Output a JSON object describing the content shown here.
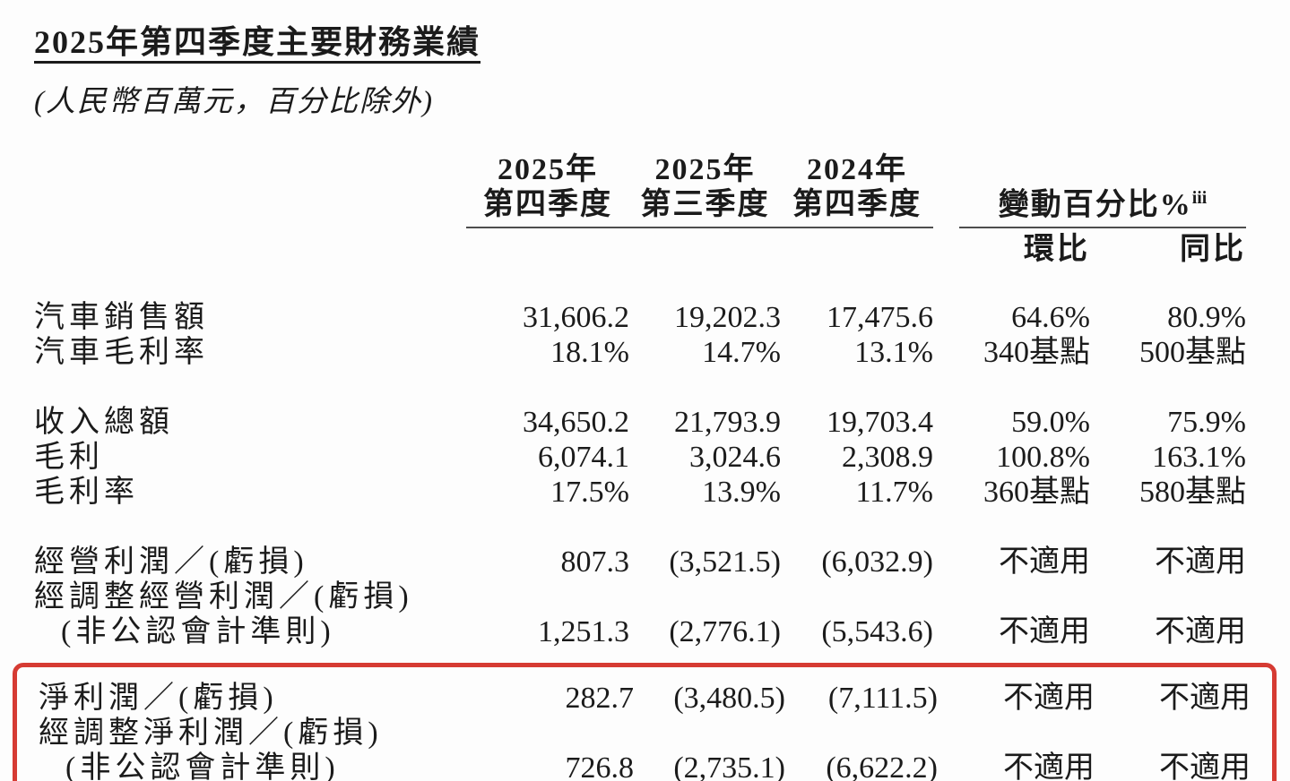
{
  "page": {
    "title": "2025年第四季度主要財務業績",
    "subtitle": "(人民幣百萬元，百分比除外)"
  },
  "table": {
    "period_headers": [
      {
        "year": "2025年",
        "quarter": "第四季度"
      },
      {
        "year": "2025年",
        "quarter": "第三季度"
      },
      {
        "year": "2024年",
        "quarter": "第四季度"
      }
    ],
    "change_group": {
      "label": "變動百分比%",
      "superscript": "iii",
      "qoq": "環比",
      "yoy": "同比"
    },
    "groups": [
      {
        "highlight": false,
        "rows": [
          {
            "label_lines": [
              "汽車銷售額"
            ],
            "values": [
              "31,606.2",
              "19,202.3",
              "17,475.6",
              "64.6%",
              "80.9%"
            ]
          },
          {
            "label_lines": [
              "汽車毛利率"
            ],
            "values": [
              "18.1%",
              "14.7%",
              "13.1%",
              "340基點",
              "500基點"
            ]
          }
        ]
      },
      {
        "highlight": false,
        "rows": [
          {
            "label_lines": [
              "收入總額"
            ],
            "values": [
              "34,650.2",
              "21,793.9",
              "19,703.4",
              "59.0%",
              "75.9%"
            ]
          },
          {
            "label_lines": [
              "毛利"
            ],
            "values": [
              "6,074.1",
              "3,024.6",
              "2,308.9",
              "100.8%",
              "163.1%"
            ]
          },
          {
            "label_lines": [
              "毛利率"
            ],
            "values": [
              "17.5%",
              "13.9%",
              "11.7%",
              "360基點",
              "580基點"
            ]
          }
        ]
      },
      {
        "highlight": false,
        "rows": [
          {
            "label_lines": [
              "經營利潤／(虧損)"
            ],
            "values": [
              "807.3",
              "(3,521.5)",
              "(6,032.9)",
              "不適用",
              "不適用"
            ]
          },
          {
            "label_lines": [
              "經調整經營利潤／(虧損)",
              "(非公認會計準則)"
            ],
            "values": [
              "1,251.3",
              "(2,776.1)",
              "(5,543.6)",
              "不適用",
              "不適用"
            ]
          }
        ]
      },
      {
        "highlight": true,
        "rows": [
          {
            "label_lines": [
              "淨利潤／(虧損)"
            ],
            "values": [
              "282.7",
              "(3,480.5)",
              "(7,111.5)",
              "不適用",
              "不適用"
            ]
          },
          {
            "label_lines": [
              "經調整淨利潤／(虧損)",
              "(非公認會計準則)"
            ],
            "values": [
              "726.8",
              "(2,735.1)",
              "(6,622.2)",
              "不適用",
              "不適用"
            ]
          }
        ]
      }
    ],
    "highlight_color": "#d63b33"
  }
}
